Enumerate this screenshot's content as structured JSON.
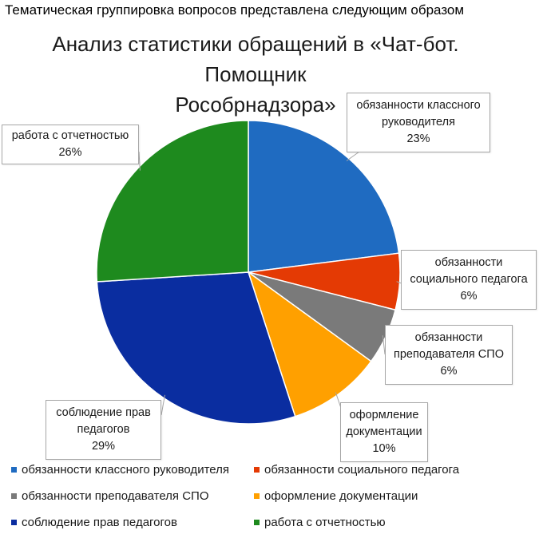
{
  "heading": "Тематическая группировка вопросов представлена следующим образом",
  "chart_data": {
    "type": "pie",
    "title_lines": [
      "Анализ статистики обращений в «Чат-бот. Помощник",
      "Рособрнадзора»"
    ],
    "series": [
      {
        "name": "обязанности классного руководителя",
        "label_lines": [
          "обязанности классного",
          "руководителя"
        ],
        "value": 23,
        "percent_label": "23%",
        "color": "#1f6bc1"
      },
      {
        "name": "обязанности социального педагога",
        "label_lines": [
          "обязанности",
          "социального педагога"
        ],
        "value": 6,
        "percent_label": "6%",
        "color": "#e43a04"
      },
      {
        "name": "обязанности преподавателя СПО",
        "label_lines": [
          "обязанности",
          "преподавателя СПО"
        ],
        "value": 6,
        "percent_label": "6%",
        "color": "#7a7a7a"
      },
      {
        "name": "оформление документации",
        "label_lines": [
          "оформление",
          "документации"
        ],
        "value": 10,
        "percent_label": "10%",
        "color": "#ffa000"
      },
      {
        "name": "соблюдение прав педагогов",
        "label_lines": [
          "соблюдение прав",
          "педагогов"
        ],
        "value": 29,
        "percent_label": "29%",
        "color": "#0a2da0"
      },
      {
        "name": "работа с отчетностью",
        "label_lines": [
          "работа с отчетностью"
        ],
        "value": 26,
        "percent_label": "26%",
        "color": "#1e8a1e"
      }
    ],
    "legend": "bottom"
  }
}
